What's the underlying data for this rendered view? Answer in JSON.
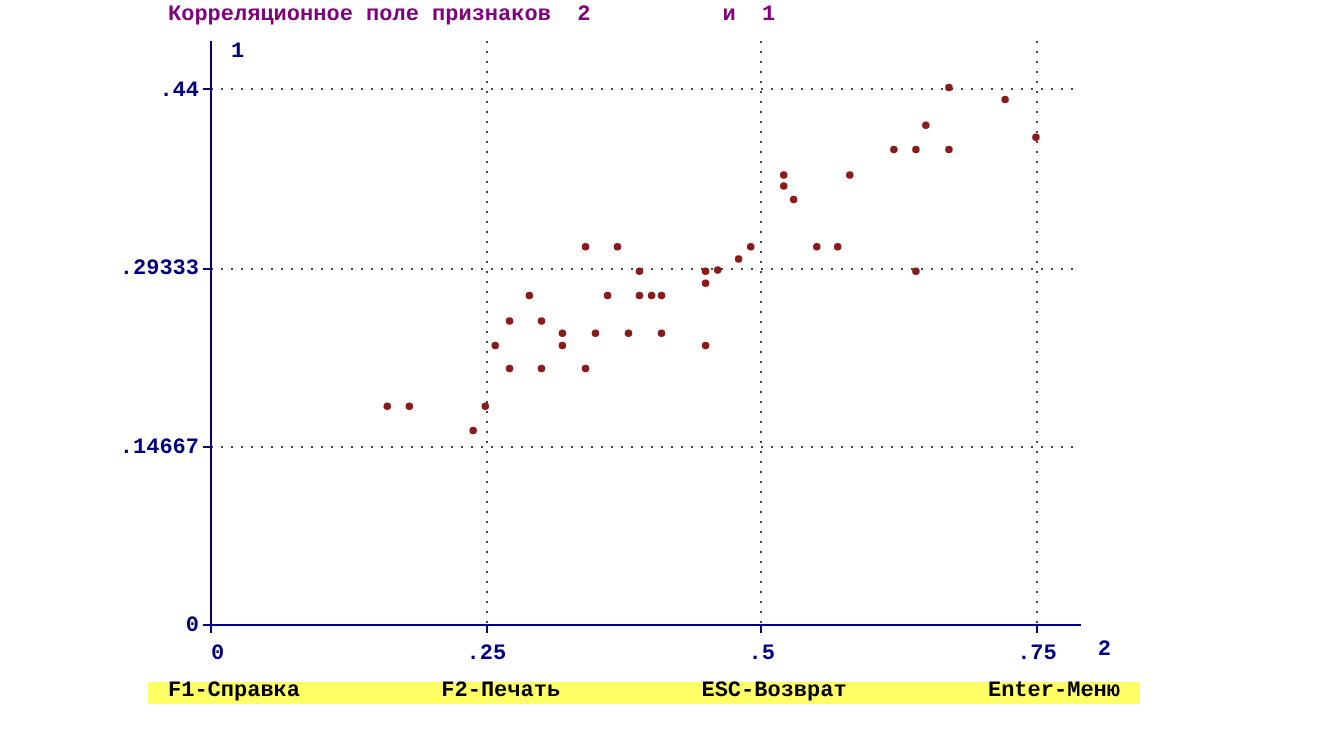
{
  "chart_data": {
    "type": "scatter",
    "title": "Корреляционное поле признаков  2          и  1",
    "xlabel": "2",
    "ylabel": "1",
    "x": [
      0.161,
      0.181,
      0.239,
      0.25,
      0.259,
      0.272,
      0.272,
      0.29,
      0.301,
      0.301,
      0.32,
      0.32,
      0.341,
      0.341,
      0.35,
      0.361,
      0.37,
      0.38,
      0.39,
      0.39,
      0.401,
      0.41,
      0.41,
      0.45,
      0.45,
      0.45,
      0.461,
      0.48,
      0.491,
      0.521,
      0.521,
      0.53,
      0.551,
      0.57,
      0.581,
      0.621,
      0.641,
      0.641,
      0.65,
      0.671,
      0.671,
      0.722,
      0.75
    ],
    "series": [
      {
        "color": "#8b1a1a",
        "values": [
          0.179,
          0.179,
          0.159,
          0.179,
          0.229,
          0.249,
          0.21,
          0.27,
          0.249,
          0.21,
          0.239,
          0.229,
          0.31,
          0.21,
          0.239,
          0.27,
          0.31,
          0.239,
          0.29,
          0.27,
          0.27,
          0.27,
          0.239,
          0.29,
          0.28,
          0.229,
          0.291,
          0.3,
          0.31,
          0.369,
          0.36,
          0.349,
          0.31,
          0.31,
          0.369,
          0.39,
          0.39,
          0.29,
          0.41,
          0.441,
          0.39,
          0.431,
          0.4
        ]
      }
    ],
    "xlim": [
      0,
      0.79
    ],
    "ylim": [
      0,
      0.48
    ],
    "xticks": [
      0,
      {
        "value": 0.25,
        "label": ".25"
      },
      {
        "value": 0.5,
        "label": ".5"
      },
      {
        "value": 0.75,
        "label": ".75"
      }
    ],
    "yticks": [
      0,
      {
        "value": 0.14667,
        "label": ".14667"
      },
      {
        "value": 0.29333,
        "label": ".29333"
      },
      {
        "value": 0.44,
        "label": ".44"
      }
    ],
    "grid": true,
    "marker": "circle",
    "annotations": [
      "F1-Справка",
      "F2-Печать",
      "ESC-Возврат",
      "Enter-Меню"
    ]
  }
}
